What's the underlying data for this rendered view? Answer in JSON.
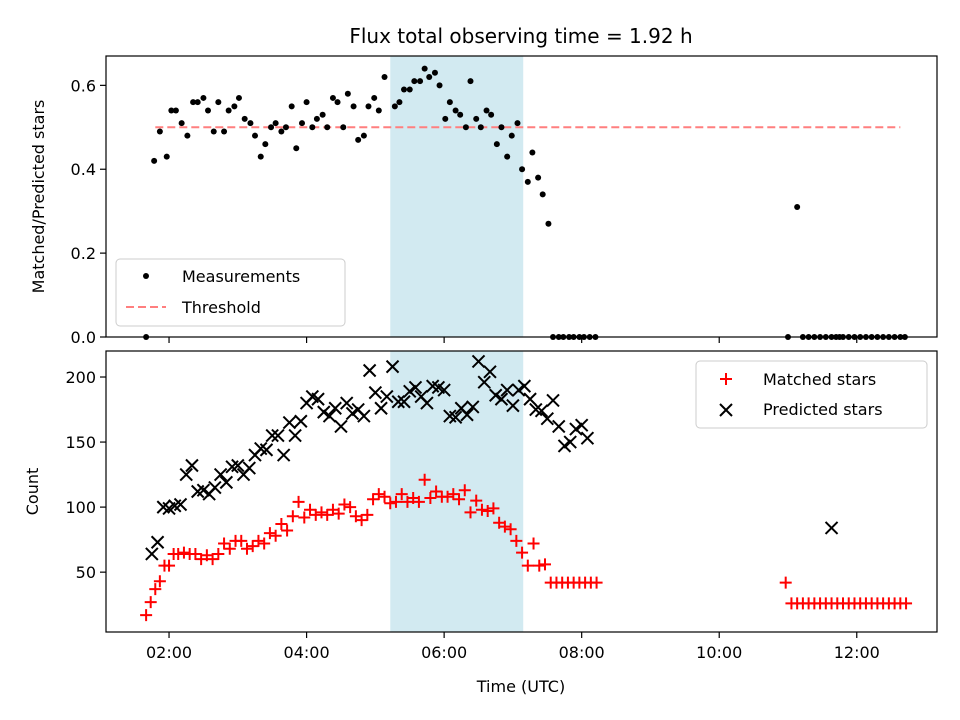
{
  "chart_data": {
    "title": "Flux total observing time = 1.92 h",
    "xlabel": "Time (UTC)",
    "x_unit": "hours UTC",
    "xlim": [
      "01:05",
      "13:10"
    ],
    "x_ticks": [
      "02:00",
      "04:00",
      "06:00",
      "08:00",
      "10:00",
      "12:00"
    ],
    "shaded_window": {
      "start": "05:13",
      "end": "07:09",
      "color": "#add8e6"
    },
    "panels": [
      {
        "type": "scatter",
        "ylabel": "Matched/Predicted stars",
        "ylim": [
          0,
          0.67
        ],
        "y_ticks": [
          "0.0",
          "0.2",
          "0.4",
          "0.6"
        ],
        "legend_position": "lower-left",
        "series": [
          {
            "name": "Measurements",
            "marker": "dot",
            "color": "#000000",
            "x": [
              "01:40",
              "01:47",
              "01:52",
              "01:58",
              "02:02",
              "02:06",
              "02:11",
              "02:16",
              "02:21",
              "02:25",
              "02:30",
              "02:34",
              "02:39",
              "02:43",
              "02:48",
              "02:52",
              "02:57",
              "03:01",
              "03:06",
              "03:11",
              "03:15",
              "03:20",
              "03:24",
              "03:29",
              "03:33",
              "03:38",
              "03:42",
              "03:47",
              "03:51",
              "03:56",
              "04:00",
              "04:05",
              "04:09",
              "04:14",
              "04:18",
              "04:23",
              "04:27",
              "04:32",
              "04:36",
              "04:41",
              "04:45",
              "04:50",
              "04:54",
              "04:59",
              "05:03",
              "05:08",
              "05:17",
              "05:21",
              "05:25",
              "05:30",
              "05:34",
              "05:39",
              "05:43",
              "05:47",
              "05:52",
              "05:56",
              "06:01",
              "06:05",
              "06:10",
              "06:14",
              "06:19",
              "06:23",
              "06:28",
              "06:32",
              "06:37",
              "06:41",
              "06:46",
              "06:50",
              "06:55",
              "06:59",
              "07:04",
              "07:08",
              "07:13",
              "07:17",
              "07:22",
              "07:26",
              "07:31",
              "07:35",
              "07:40",
              "07:44",
              "07:49",
              "07:53",
              "07:58",
              "08:02",
              "08:07",
              "08:12",
              "11:00",
              "11:08",
              "11:13",
              "11:18",
              "11:23",
              "11:28",
              "11:33",
              "11:38",
              "11:42",
              "11:45",
              "11:48",
              "11:53",
              "11:58",
              "12:03",
              "12:08",
              "12:13",
              "12:18",
              "12:23",
              "12:28",
              "12:33",
              "12:38",
              "12:42"
            ],
            "y": [
              0.0,
              0.42,
              0.49,
              0.43,
              0.54,
              0.54,
              0.51,
              0.48,
              0.56,
              0.56,
              0.57,
              0.54,
              0.49,
              0.56,
              0.49,
              0.54,
              0.55,
              0.57,
              0.52,
              0.51,
              0.48,
              0.43,
              0.46,
              0.5,
              0.51,
              0.49,
              0.5,
              0.55,
              0.45,
              0.51,
              0.56,
              0.5,
              0.52,
              0.53,
              0.5,
              0.57,
              0.56,
              0.5,
              0.58,
              0.55,
              0.47,
              0.48,
              0.55,
              0.57,
              0.54,
              0.62,
              0.55,
              0.56,
              0.59,
              0.59,
              0.61,
              0.61,
              0.64,
              0.62,
              0.63,
              0.6,
              0.52,
              0.56,
              0.54,
              0.53,
              0.5,
              0.61,
              0.52,
              0.5,
              0.54,
              0.53,
              0.46,
              0.5,
              0.43,
              0.48,
              0.51,
              0.4,
              0.37,
              0.44,
              0.38,
              0.34,
              0.27,
              0.0,
              0.0,
              0.0,
              0.0,
              0.0,
              0.0,
              0.0,
              0.0,
              0.0,
              0.0,
              0.31,
              0.0,
              0.0,
              0.0,
              0.0,
              0.0,
              0.0,
              0.0,
              0.0,
              0.0,
              0.0,
              0.0,
              0.0,
              0.0,
              0.0,
              0.0,
              0.0,
              0.0,
              0.0,
              0.0,
              0.0
            ]
          },
          {
            "name": "Threshold",
            "type": "line",
            "style": "dashed",
            "color": "#ff7f7f",
            "x": [
              "01:48",
              "12:38"
            ],
            "y": [
              0.5,
              0.5
            ]
          }
        ]
      },
      {
        "type": "scatter",
        "ylabel": "Count",
        "ylim": [
          4,
          220
        ],
        "y_ticks": [
          "50",
          "100",
          "150",
          "200"
        ],
        "legend_position": "top-right",
        "series": [
          {
            "name": "Matched stars",
            "marker": "plus",
            "color": "#ff0000",
            "x": [
              "01:40",
              "01:44",
              "01:48",
              "01:52",
              "01:56",
              "02:00",
              "02:04",
              "02:08",
              "02:13",
              "02:18",
              "02:23",
              "02:28",
              "02:33",
              "02:38",
              "02:43",
              "02:48",
              "02:53",
              "02:58",
              "03:03",
              "03:08",
              "03:13",
              "03:18",
              "03:23",
              "03:28",
              "03:33",
              "03:38",
              "03:43",
              "03:48",
              "03:53",
              "03:58",
              "04:03",
              "04:08",
              "04:13",
              "04:18",
              "04:23",
              "04:28",
              "04:33",
              "04:38",
              "04:43",
              "04:48",
              "04:53",
              "04:58",
              "05:03",
              "05:08",
              "05:13",
              "05:18",
              "05:23",
              "05:28",
              "05:33",
              "05:38",
              "05:43",
              "05:48",
              "05:53",
              "05:58",
              "06:03",
              "06:08",
              "06:13",
              "06:18",
              "06:23",
              "06:28",
              "06:33",
              "06:38",
              "06:43",
              "06:48",
              "06:53",
              "06:58",
              "07:03",
              "07:08",
              "07:13",
              "07:18",
              "07:23",
              "07:28",
              "07:33",
              "07:38",
              "07:43",
              "07:48",
              "07:53",
              "07:58",
              "08:03",
              "08:08",
              "08:13",
              "10:58",
              "11:03",
              "11:08",
              "11:13",
              "11:18",
              "11:23",
              "11:28",
              "11:33",
              "11:38",
              "11:43",
              "11:48",
              "11:53",
              "11:58",
              "12:03",
              "12:08",
              "12:13",
              "12:18",
              "12:23",
              "12:28",
              "12:33",
              "12:38",
              "12:43"
            ],
            "y": [
              17,
              27,
              37,
              43,
              55,
              55,
              64,
              64,
              65,
              64,
              64,
              60,
              63,
              60,
              64,
              72,
              68,
              74,
              74,
              68,
              70,
              74,
              72,
              80,
              78,
              87,
              82,
              93,
              104,
              92,
              98,
              94,
              96,
              94,
              98,
              95,
              102,
              100,
              93,
              90,
              94,
              106,
              110,
              108,
              103,
              104,
              110,
              104,
              107,
              104,
              121,
              107,
              112,
              108,
              108,
              110,
              106,
              113,
              96,
              105,
              98,
              97,
              99,
              88,
              85,
              83,
              74,
              65,
              55,
              72,
              55,
              56,
              42,
              42,
              42,
              42,
              42,
              42,
              42,
              42,
              42,
              42,
              26,
              26,
              26,
              26,
              26,
              26,
              26,
              26,
              26,
              26,
              26,
              26,
              26,
              26,
              26,
              26,
              26,
              26,
              26,
              26,
              26
            ]
          },
          {
            "name": "Predicted stars",
            "marker": "x",
            "color": "#000000",
            "x": [
              "01:45",
              "01:50",
              "01:55",
              "02:00",
              "02:05",
              "02:10",
              "02:15",
              "02:20",
              "02:25",
              "02:30",
              "02:35",
              "02:40",
              "02:45",
              "02:50",
              "02:55",
              "03:00",
              "03:05",
              "03:10",
              "03:15",
              "03:20",
              "03:25",
              "03:30",
              "03:35",
              "03:40",
              "03:45",
              "03:50",
              "03:55",
              "04:00",
              "04:05",
              "04:10",
              "04:15",
              "04:20",
              "04:25",
              "04:30",
              "04:35",
              "04:40",
              "04:45",
              "04:50",
              "04:55",
              "05:00",
              "05:05",
              "05:10",
              "05:15",
              "05:20",
              "05:25",
              "05:30",
              "05:35",
              "05:40",
              "05:45",
              "05:50",
              "05:55",
              "06:00",
              "06:05",
              "06:10",
              "06:15",
              "06:20",
              "06:25",
              "06:30",
              "06:35",
              "06:40",
              "06:45",
              "06:50",
              "06:55",
              "07:00",
              "07:05",
              "07:10",
              "07:15",
              "07:20",
              "07:25",
              "07:30",
              "07:35",
              "07:40",
              "07:45",
              "07:50",
              "07:55",
              "08:00",
              "08:05",
              "11:38"
            ],
            "y": [
              64,
              73,
              100,
              99,
              101,
              102,
              125,
              132,
              112,
              113,
              110,
              115,
              125,
              119,
              131,
              132,
              125,
              130,
              140,
              145,
              144,
              155,
              155,
              140,
              165,
              155,
              166,
              180,
              185,
              183,
              173,
              170,
              176,
              162,
              180,
              172,
              175,
              170,
              205,
              188,
              176,
              185,
              208,
              181,
              181,
              189,
              192,
              185,
              180,
              193,
              192,
              190,
              170,
              169,
              176,
              171,
              177,
              212,
              196,
              204,
              186,
              183,
              190,
              178,
              190,
              193,
              183,
              175,
              174,
              168,
              182,
              162,
              147,
              150,
              160,
              163,
              153,
              84
            ]
          }
        ]
      }
    ]
  }
}
